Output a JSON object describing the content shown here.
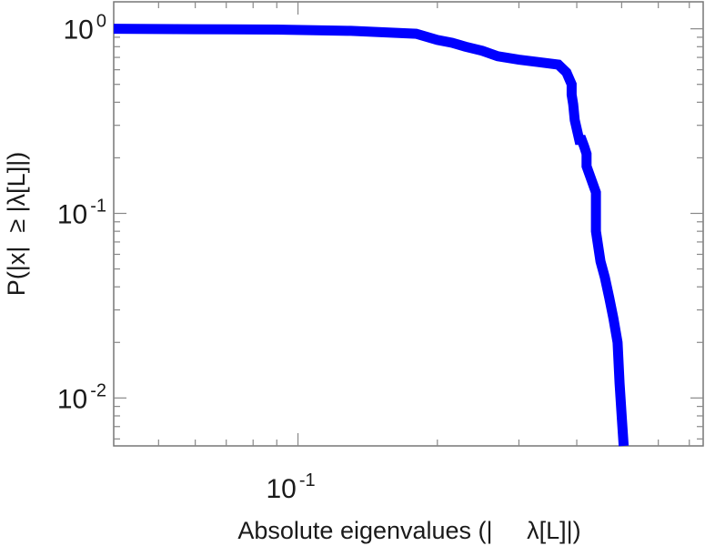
{
  "chart_data": {
    "type": "line",
    "xlabel": "Absolute eigenvalues (|     λ[L]|)",
    "ylabel": "P(|x|  ≥ |λ[L]|)",
    "xscale": "log",
    "yscale": "log",
    "xlim": [
      0.04,
      0.75
    ],
    "ylim": [
      0.0055,
      1.4
    ],
    "grid": false,
    "x_ticks": [
      {
        "value": 0.1,
        "base": "10",
        "exp": "-1"
      }
    ],
    "y_ticks": [
      {
        "value": 1,
        "base": "10",
        "exp": "0"
      },
      {
        "value": 0.1,
        "base": "10",
        "exp": "-1"
      },
      {
        "value": 0.01,
        "base": "10",
        "exp": "-2"
      }
    ],
    "series": [
      {
        "color": "#0000ff",
        "x": [
          0.04,
          0.06,
          0.09,
          0.13,
          0.18,
          0.2,
          0.215,
          0.23,
          0.25,
          0.27,
          0.3,
          0.33,
          0.365,
          0.38,
          0.39,
          0.39,
          0.393,
          0.396,
          0.405,
          0.41,
          0.415,
          0.42,
          0.42,
          0.44,
          0.44,
          0.45,
          0.46,
          0.47,
          0.48,
          0.49,
          0.495,
          0.5,
          0.505
        ],
        "y": [
          1.0,
          0.995,
          0.99,
          0.975,
          0.94,
          0.87,
          0.84,
          0.8,
          0.76,
          0.71,
          0.68,
          0.66,
          0.64,
          0.58,
          0.5,
          0.44,
          0.39,
          0.32,
          0.25,
          0.25,
          0.23,
          0.21,
          0.18,
          0.13,
          0.08,
          0.055,
          0.045,
          0.035,
          0.027,
          0.02,
          0.012,
          0.008,
          0.0055
        ]
      }
    ]
  }
}
